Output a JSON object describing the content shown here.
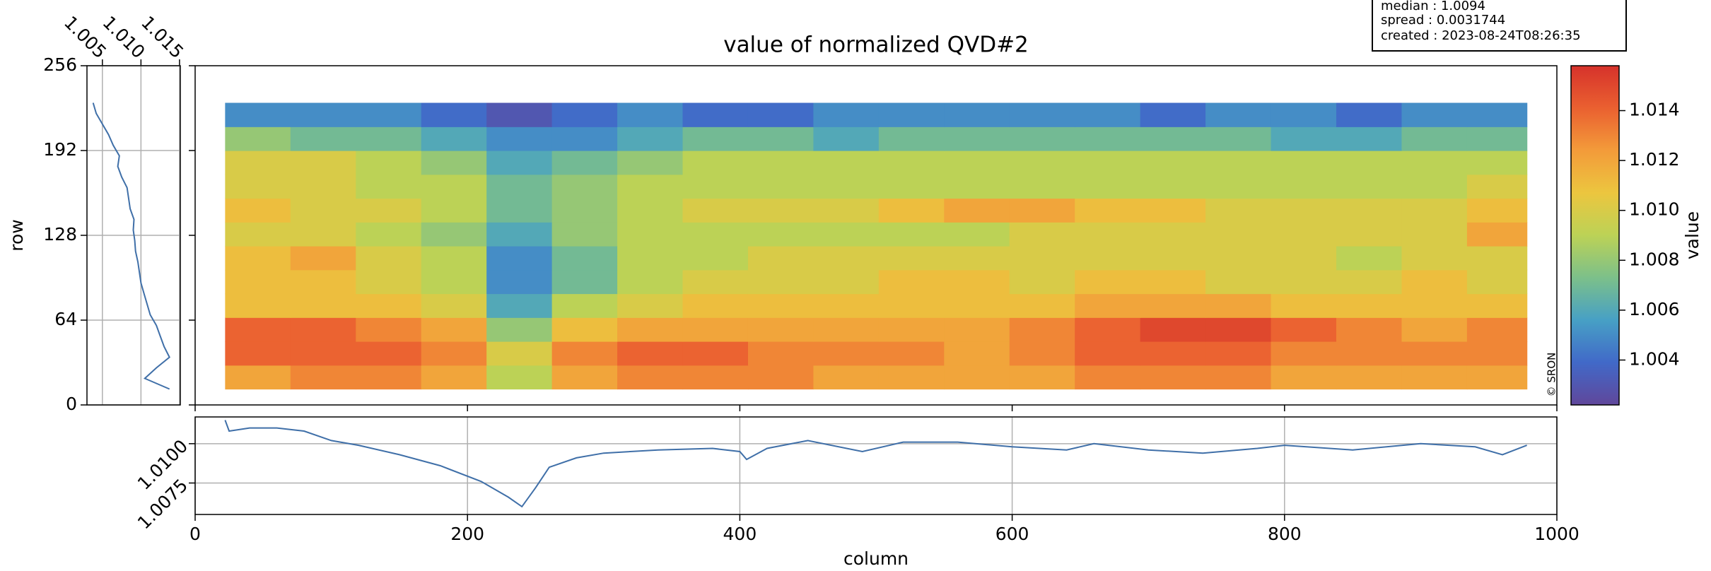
{
  "info_box": [
    "median : 1.0094",
    "spread : 0.0031744",
    "created : 2023-08-24T08:26:35"
  ],
  "chart_data": [
    {
      "type": "heatmap",
      "title": "value of normalized QVD#2",
      "annotation": "© SRON",
      "xlim": [
        0,
        1000
      ],
      "ylim": [
        0,
        256
      ],
      "xbins": [
        22,
        70,
        118,
        166,
        214,
        262,
        310,
        358,
        406,
        454,
        502,
        550,
        598,
        646,
        694,
        742,
        790,
        838,
        886,
        934,
        978
      ],
      "ybins": [
        12,
        30,
        48,
        66,
        84,
        102,
        120,
        138,
        156,
        174,
        192,
        210,
        228
      ],
      "colormap": [
        "#60479b",
        "#4169c8",
        "#47a0c5",
        "#7cc08a",
        "#bcd256",
        "#ecc63f",
        "#f39b3a",
        "#ea6030",
        "#d6322b"
      ],
      "values": [
        [
          1.012,
          1.013,
          1.013,
          1.012,
          1.009,
          1.012,
          1.013,
          1.013,
          1.013,
          1.012,
          1.012,
          1.012,
          1.012,
          1.013,
          1.013,
          1.013,
          1.012,
          1.012,
          1.012,
          1.012
        ],
        [
          1.014,
          1.014,
          1.014,
          1.013,
          1.01,
          1.013,
          1.014,
          1.014,
          1.013,
          1.013,
          1.013,
          1.012,
          1.013,
          1.014,
          1.014,
          1.014,
          1.013,
          1.013,
          1.013,
          1.013
        ],
        [
          1.014,
          1.014,
          1.013,
          1.012,
          1.008,
          1.011,
          1.012,
          1.012,
          1.012,
          1.012,
          1.012,
          1.012,
          1.013,
          1.014,
          1.015,
          1.015,
          1.014,
          1.013,
          1.012,
          1.013
        ],
        [
          1.011,
          1.011,
          1.011,
          1.01,
          1.006,
          1.009,
          1.01,
          1.011,
          1.011,
          1.011,
          1.011,
          1.011,
          1.011,
          1.012,
          1.012,
          1.012,
          1.011,
          1.011,
          1.011,
          1.011
        ],
        [
          1.011,
          1.011,
          1.01,
          1.009,
          1.005,
          1.007,
          1.009,
          1.01,
          1.01,
          1.01,
          1.011,
          1.011,
          1.01,
          1.011,
          1.011,
          1.01,
          1.01,
          1.01,
          1.011,
          1.01
        ],
        [
          1.011,
          1.012,
          1.01,
          1.009,
          1.005,
          1.007,
          1.009,
          1.009,
          1.01,
          1.01,
          1.01,
          1.01,
          1.01,
          1.01,
          1.01,
          1.01,
          1.01,
          1.009,
          1.01,
          1.01
        ],
        [
          1.01,
          1.01,
          1.009,
          1.008,
          1.006,
          1.008,
          1.009,
          1.009,
          1.009,
          1.009,
          1.009,
          1.009,
          1.01,
          1.01,
          1.01,
          1.01,
          1.01,
          1.01,
          1.01,
          1.012
        ],
        [
          1.011,
          1.01,
          1.01,
          1.009,
          1.007,
          1.008,
          1.009,
          1.01,
          1.01,
          1.01,
          1.011,
          1.012,
          1.012,
          1.011,
          1.011,
          1.01,
          1.01,
          1.01,
          1.01,
          1.011
        ],
        [
          1.01,
          1.01,
          1.009,
          1.009,
          1.007,
          1.008,
          1.009,
          1.009,
          1.009,
          1.009,
          1.009,
          1.009,
          1.009,
          1.009,
          1.009,
          1.009,
          1.009,
          1.009,
          1.009,
          1.01
        ],
        [
          1.01,
          1.01,
          1.009,
          1.008,
          1.006,
          1.007,
          1.008,
          1.009,
          1.009,
          1.009,
          1.009,
          1.009,
          1.009,
          1.009,
          1.009,
          1.009,
          1.009,
          1.009,
          1.009,
          1.009
        ],
        [
          1.008,
          1.007,
          1.007,
          1.006,
          1.005,
          1.005,
          1.006,
          1.007,
          1.007,
          1.006,
          1.007,
          1.007,
          1.007,
          1.007,
          1.007,
          1.007,
          1.006,
          1.006,
          1.007,
          1.007
        ],
        [
          1.005,
          1.005,
          1.005,
          1.004,
          1.003,
          1.004,
          1.005,
          1.004,
          1.004,
          1.005,
          1.005,
          1.005,
          1.005,
          1.005,
          1.004,
          1.005,
          1.005,
          1.004,
          1.005,
          1.005
        ]
      ]
    },
    {
      "type": "colorbar",
      "label": "value",
      "zlim": [
        1.0022,
        1.0158
      ],
      "zticks": [
        1.004,
        1.006,
        1.008,
        {
          "value": 1.01,
          "label": "1.010"
        },
        1.012,
        1.014
      ]
    },
    {
      "type": "line",
      "orientation": "vertical",
      "ylabel": "row",
      "color": "#3f6fa8",
      "grid": true,
      "ylim": [
        0,
        256
      ],
      "yticks": [
        0,
        64,
        128,
        192,
        256
      ],
      "xlim": [
        1.003,
        1.0151
      ],
      "xticks": [
        1.005,
        {
          "value": 1.01,
          "label": "1.010"
        },
        1.015
      ],
      "y": [
        12,
        20,
        28,
        36,
        44,
        52,
        60,
        68,
        76,
        84,
        92,
        100,
        108,
        116,
        124,
        132,
        140,
        148,
        156,
        164,
        172,
        180,
        188,
        196,
        204,
        212,
        220,
        228
      ],
      "values": [
        1.0137,
        1.0105,
        1.012,
        1.0137,
        1.013,
        1.0125,
        1.012,
        1.0112,
        1.0108,
        1.0104,
        1.01,
        1.0098,
        1.0096,
        1.0093,
        1.0092,
        1.009,
        1.0091,
        1.0086,
        1.0084,
        1.0082,
        1.0075,
        1.007,
        1.0072,
        1.0064,
        1.0058,
        1.005,
        1.0042,
        1.0038
      ]
    },
    {
      "type": "line",
      "orientation": "horizontal",
      "xlabel": "column",
      "color": "#3f6fa8",
      "grid": true,
      "xlim": [
        0,
        1000
      ],
      "xticks": [
        0,
        200,
        400,
        600,
        800,
        1000
      ],
      "ylim": [
        1.0055,
        1.0117
      ],
      "yticks": [
        1.0075,
        {
          "value": 1.01,
          "label": "1.0100"
        }
      ],
      "x": [
        22,
        25,
        40,
        60,
        80,
        100,
        120,
        150,
        180,
        210,
        230,
        240,
        250,
        260,
        280,
        300,
        340,
        380,
        400,
        405,
        420,
        450,
        490,
        520,
        560,
        600,
        640,
        660,
        700,
        740,
        780,
        800,
        850,
        900,
        940,
        960,
        978
      ],
      "values": [
        1.0115,
        1.0108,
        1.011,
        1.011,
        1.0108,
        1.0102,
        1.0099,
        1.0093,
        1.0086,
        1.0076,
        1.0066,
        1.006,
        1.0072,
        1.0085,
        1.0091,
        1.0094,
        1.0096,
        1.0097,
        1.0095,
        1.009,
        1.0097,
        1.0102,
        1.0095,
        1.0101,
        1.0101,
        1.0098,
        1.0096,
        1.01,
        1.0096,
        1.0094,
        1.0097,
        1.0099,
        1.0096,
        1.01,
        1.0098,
        1.0093,
        1.0099
      ]
    }
  ]
}
